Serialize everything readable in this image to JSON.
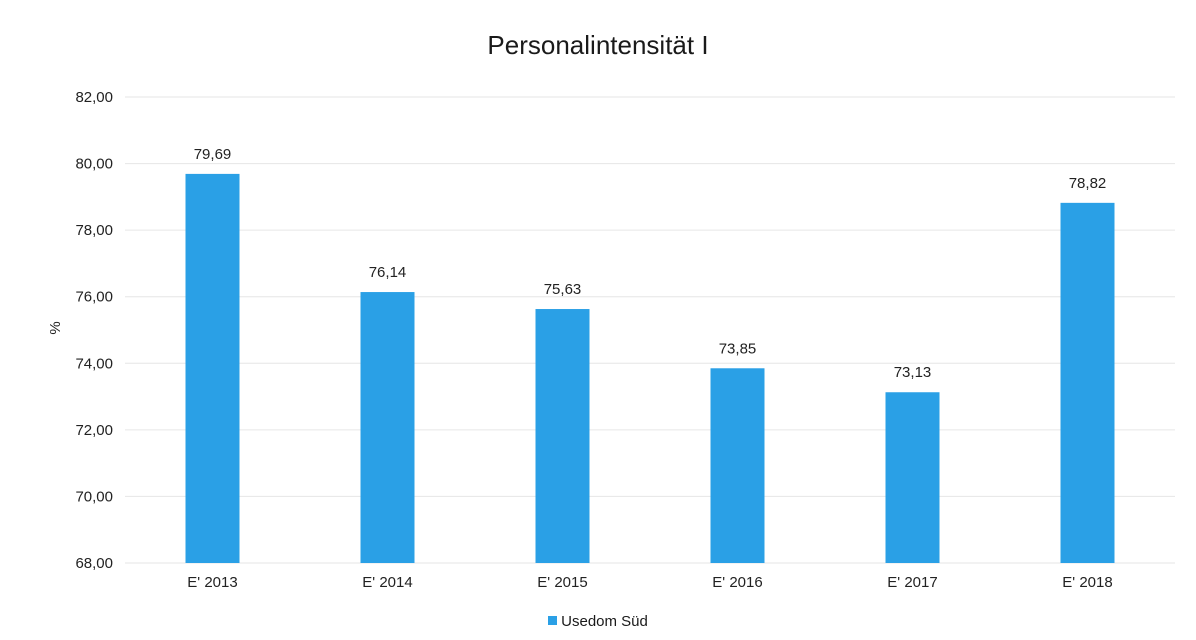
{
  "chart_data": {
    "type": "bar",
    "title": "Personalintensität I",
    "ylabel": "%",
    "xlabel": "",
    "categories": [
      "E' 2013",
      "E' 2014",
      "E' 2015",
      "E' 2016",
      "E' 2017",
      "E' 2018"
    ],
    "series": [
      {
        "name": "Usedom Süd",
        "values": [
          79.69,
          76.14,
          75.63,
          73.85,
          73.13,
          78.82
        ],
        "value_labels": [
          "79,69",
          "76,14",
          "75,63",
          "73,85",
          "73,13",
          "78,82"
        ]
      }
    ],
    "ylim": [
      68,
      82
    ],
    "yticks": [
      68,
      70,
      72,
      74,
      76,
      78,
      80,
      82
    ],
    "ytick_labels": [
      "68,00",
      "70,00",
      "72,00",
      "74,00",
      "76,00",
      "78,00",
      "80,00",
      "82,00"
    ],
    "grid": true,
    "legend_position": "bottom",
    "colors": {
      "bar": "#2aa0e6",
      "grid": "#e6e6e6"
    }
  }
}
